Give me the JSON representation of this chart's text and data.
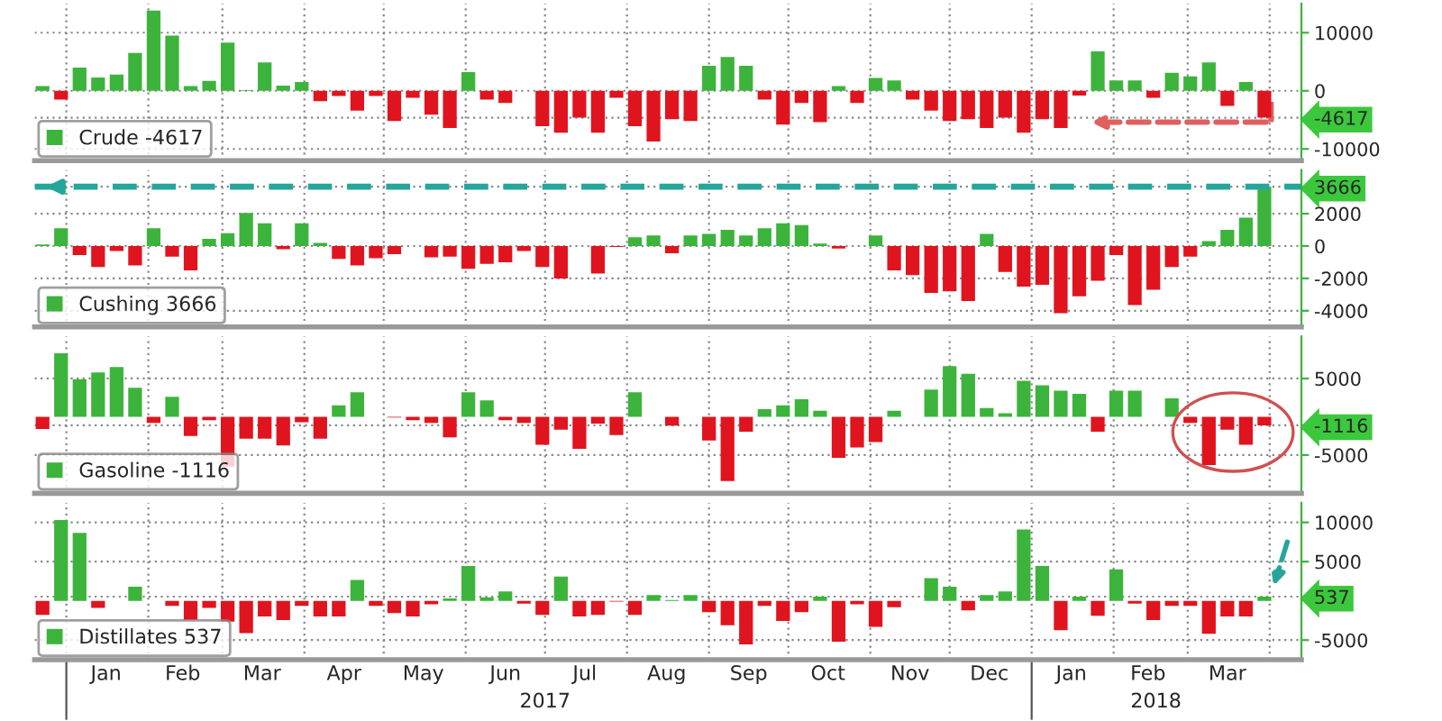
{
  "chart_data": [
    {
      "type": "bar",
      "tick_labels": "y",
      "grid": true,
      "legend": "bottom left",
      "x": [
        "2016-12-23",
        "2016-12-30",
        "2017-01-06",
        "2017-01-13",
        "2017-01-20",
        "2017-01-27",
        "2017-02-03",
        "2017-02-10",
        "2017-02-17",
        "2017-02-24",
        "2017-03-03",
        "2017-03-10",
        "2017-03-17",
        "2017-03-24",
        "2017-03-31",
        "2017-04-07",
        "2017-04-14",
        "2017-04-21",
        "2017-04-28",
        "2017-05-05",
        "2017-05-12",
        "2017-05-19",
        "2017-05-26",
        "2017-06-02",
        "2017-06-09",
        "2017-06-16",
        "2017-06-23",
        "2017-06-30",
        "2017-07-07",
        "2017-07-14",
        "2017-07-21",
        "2017-07-28",
        "2017-08-04",
        "2017-08-11",
        "2017-08-18",
        "2017-08-25",
        "2017-09-01",
        "2017-09-08",
        "2017-09-15",
        "2017-09-22",
        "2017-09-29",
        "2017-10-06",
        "2017-10-13",
        "2017-10-20",
        "2017-10-27",
        "2017-11-03",
        "2017-11-10",
        "2017-11-17",
        "2017-11-24",
        "2017-12-01",
        "2017-12-08",
        "2017-12-15",
        "2017-12-22",
        "2017-12-29",
        "2018-01-05",
        "2018-01-12",
        "2018-01-19",
        "2018-01-26",
        "2018-02-02",
        "2018-02-09",
        "2018-02-16",
        "2018-02-23",
        "2018-03-02",
        "2018-03-09",
        "2018-03-16",
        "2018-03-23",
        "2018-03-30"
      ],
      "series": [
        {
          "name": "Crude -4617",
          "color": "#3cb43c",
          "values": [
            800,
            -1500,
            4000,
            2300,
            2800,
            6500,
            13800,
            9500,
            800,
            1700,
            8300,
            100,
            4900,
            900,
            1500,
            -1800,
            -900,
            -3400,
            -900,
            -5200,
            -1200,
            -4100,
            -6400,
            3200,
            -1500,
            -2100,
            0,
            -6100,
            -7200,
            -4600,
            -7200,
            -1200,
            -6100,
            -8700,
            -4900,
            -5200,
            4300,
            5800,
            4300,
            -1500,
            -5800,
            -2100,
            -5400,
            800,
            -2100,
            2200,
            1800,
            -1500,
            -3400,
            -5200,
            -4900,
            -6400,
            -4600,
            -7200,
            -4900,
            -6400,
            -800,
            6800,
            1800,
            1800,
            -1200,
            3100,
            2500,
            4900,
            -2600,
            1500,
            -4617
          ],
          "colors": [
            "#3cb43c",
            "#e0141e",
            "#3cb43c",
            "#3cb43c",
            "#3cb43c",
            "#3cb43c",
            "#3cb43c",
            "#3cb43c",
            "#3cb43c",
            "#3cb43c",
            "#3cb43c",
            "#3cb43c",
            "#3cb43c",
            "#3cb43c",
            "#3cb43c",
            "#e0141e",
            "#e0141e",
            "#e0141e",
            "#e0141e",
            "#e0141e",
            "#e0141e",
            "#e0141e",
            "#e0141e",
            "#3cb43c",
            "#e0141e",
            "#e0141e",
            "#3cb43c",
            "#e0141e",
            "#e0141e",
            "#e0141e",
            "#e0141e",
            "#e0141e",
            "#e0141e",
            "#e0141e",
            "#e0141e",
            "#e0141e",
            "#3cb43c",
            "#3cb43c",
            "#3cb43c",
            "#e0141e",
            "#e0141e",
            "#e0141e",
            "#e0141e",
            "#3cb43c",
            "#e0141e",
            "#3cb43c",
            "#3cb43c",
            "#e0141e",
            "#e0141e",
            "#e0141e",
            "#e0141e",
            "#e0141e",
            "#e0141e",
            "#e0141e",
            "#e0141e",
            "#e0141e",
            "#e0141e",
            "#3cb43c",
            "#3cb43c",
            "#3cb43c",
            "#e0141e",
            "#3cb43c",
            "#3cb43c",
            "#3cb43c",
            "#e0141e",
            "#3cb43c",
            "#e0141e"
          ]
        }
      ],
      "xlim": [
        "2016-12-20",
        "2018-04-13"
      ],
      "xticks": [
        {
          "value": "2017-01-01",
          "label": null
        },
        {
          "value": "2017-02-01",
          "label": null
        },
        {
          "value": "2017-03-01",
          "label": null
        },
        {
          "value": "2017-04-01",
          "label": null
        },
        {
          "value": "2017-05-01",
          "label": null
        },
        {
          "value": "2017-06-01",
          "label": null
        },
        {
          "value": "2017-07-01",
          "label": null
        },
        {
          "value": "2017-08-01",
          "label": null
        },
        {
          "value": "2017-09-01",
          "label": null
        },
        {
          "value": "2017-10-01",
          "label": null
        },
        {
          "value": "2017-11-01",
          "label": null
        },
        {
          "value": "2017-12-01",
          "label": null
        },
        {
          "value": "2018-01-01",
          "label": null
        },
        {
          "value": "2018-02-01",
          "label": null
        },
        {
          "value": "2018-03-01",
          "label": null
        },
        {
          "value": "2018-04-01",
          "label": null
        }
      ],
      "ylim": [
        -12000,
        15000
      ],
      "yticks": [
        10000,
        0,
        {
          "value": -4617,
          "label": "-4617"
        },
        -10000
      ]
    },
    {
      "type": "bar",
      "tick_labels": "y",
      "grid": true,
      "legend": "bottom left",
      "x": [
        "2016-12-23",
        "2016-12-30",
        "2017-01-06",
        "2017-01-13",
        "2017-01-20",
        "2017-01-27",
        "2017-02-03",
        "2017-02-10",
        "2017-02-17",
        "2017-02-24",
        "2017-03-03",
        "2017-03-10",
        "2017-03-17",
        "2017-03-24",
        "2017-03-31",
        "2017-04-07",
        "2017-04-14",
        "2017-04-21",
        "2017-04-28",
        "2017-05-05",
        "2017-05-12",
        "2017-05-19",
        "2017-05-26",
        "2017-06-02",
        "2017-06-09",
        "2017-06-16",
        "2017-06-23",
        "2017-06-30",
        "2017-07-07",
        "2017-07-14",
        "2017-07-21",
        "2017-07-28",
        "2017-08-04",
        "2017-08-11",
        "2017-08-18",
        "2017-08-25",
        "2017-09-01",
        "2017-09-08",
        "2017-09-15",
        "2017-09-22",
        "2017-09-29",
        "2017-10-06",
        "2017-10-13",
        "2017-10-20",
        "2017-10-27",
        "2017-11-03",
        "2017-11-10",
        "2017-11-17",
        "2017-11-24",
        "2017-12-01",
        "2017-12-08",
        "2017-12-15",
        "2017-12-22",
        "2017-12-29",
        "2018-01-05",
        "2018-01-12",
        "2018-01-19",
        "2018-01-26",
        "2018-02-02",
        "2018-02-09",
        "2018-02-16",
        "2018-02-23",
        "2018-03-02",
        "2018-03-09",
        "2018-03-16",
        "2018-03-23",
        "2018-03-30"
      ],
      "series": [
        {
          "name": "Cushing 3666",
          "color": "#3cb43c",
          "values": [
            100,
            1100,
            -550,
            -1300,
            -300,
            -1200,
            1100,
            -650,
            -1500,
            450,
            800,
            2050,
            1400,
            -200,
            1400,
            200,
            -800,
            -1200,
            -750,
            -500,
            0,
            -700,
            -650,
            -1400,
            -1100,
            -1000,
            -300,
            -1300,
            -2000,
            0,
            -1700,
            -50,
            550,
            650,
            -450,
            650,
            750,
            1000,
            650,
            1100,
            1400,
            1300,
            150,
            -150,
            0,
            650,
            -1500,
            -1800,
            -2900,
            -2800,
            -3400,
            750,
            -1600,
            -2500,
            -2400,
            -4150,
            -3100,
            -2150,
            -550,
            -3650,
            -2700,
            -1300,
            -650,
            300,
            1000,
            1750,
            3666
          ],
          "colors": [
            "#3cb43c",
            "#3cb43c",
            "#e0141e",
            "#e0141e",
            "#e0141e",
            "#e0141e",
            "#3cb43c",
            "#e0141e",
            "#e0141e",
            "#3cb43c",
            "#3cb43c",
            "#3cb43c",
            "#3cb43c",
            "#e0141e",
            "#3cb43c",
            "#3cb43c",
            "#e0141e",
            "#e0141e",
            "#e0141e",
            "#e0141e",
            "#3cb43c",
            "#e0141e",
            "#e0141e",
            "#e0141e",
            "#e0141e",
            "#e0141e",
            "#e0141e",
            "#e0141e",
            "#e0141e",
            "#3cb43c",
            "#e0141e",
            "#e0141e",
            "#3cb43c",
            "#3cb43c",
            "#e0141e",
            "#3cb43c",
            "#3cb43c",
            "#3cb43c",
            "#3cb43c",
            "#3cb43c",
            "#3cb43c",
            "#3cb43c",
            "#3cb43c",
            "#e0141e",
            "#3cb43c",
            "#3cb43c",
            "#e0141e",
            "#e0141e",
            "#e0141e",
            "#e0141e",
            "#e0141e",
            "#3cb43c",
            "#e0141e",
            "#e0141e",
            "#e0141e",
            "#e0141e",
            "#e0141e",
            "#e0141e",
            "#e0141e",
            "#e0141e",
            "#e0141e",
            "#e0141e",
            "#e0141e",
            "#3cb43c",
            "#3cb43c",
            "#3cb43c",
            "#3cb43c"
          ]
        }
      ],
      "xlim": [
        "2016-12-20",
        "2018-04-13"
      ],
      "xticks": [
        {
          "value": "2017-01-01",
          "label": null
        },
        {
          "value": "2017-02-01",
          "label": null
        },
        {
          "value": "2017-03-01",
          "label": null
        },
        {
          "value": "2017-04-01",
          "label": null
        },
        {
          "value": "2017-05-01",
          "label": null
        },
        {
          "value": "2017-06-01",
          "label": null
        },
        {
          "value": "2017-07-01",
          "label": null
        },
        {
          "value": "2017-08-01",
          "label": null
        },
        {
          "value": "2017-09-01",
          "label": null
        },
        {
          "value": "2017-10-01",
          "label": null
        },
        {
          "value": "2017-11-01",
          "label": null
        },
        {
          "value": "2017-12-01",
          "label": null
        },
        {
          "value": "2018-01-01",
          "label": null
        },
        {
          "value": "2018-02-01",
          "label": null
        },
        {
          "value": "2018-03-01",
          "label": null
        },
        {
          "value": "2018-04-01",
          "label": null
        }
      ],
      "ylim": [
        -5000,
        4700
      ],
      "yticks": [
        {
          "value": 3666,
          "label": "3666"
        },
        2000,
        0,
        -2000,
        -4000
      ],
      "ref_lines": [
        {
          "axis": "y",
          "value": 3666,
          "color": "#26a69a",
          "line_style": "dashed"
        }
      ]
    },
    {
      "type": "bar",
      "tick_labels": "y",
      "grid": true,
      "legend": "bottom left",
      "x": [
        "2016-12-23",
        "2016-12-30",
        "2017-01-06",
        "2017-01-13",
        "2017-01-20",
        "2017-01-27",
        "2017-02-03",
        "2017-02-10",
        "2017-02-17",
        "2017-02-24",
        "2017-03-03",
        "2017-03-10",
        "2017-03-17",
        "2017-03-24",
        "2017-03-31",
        "2017-04-07",
        "2017-04-14",
        "2017-04-21",
        "2017-04-28",
        "2017-05-05",
        "2017-05-12",
        "2017-05-19",
        "2017-05-26",
        "2017-06-02",
        "2017-06-09",
        "2017-06-16",
        "2017-06-23",
        "2017-06-30",
        "2017-07-07",
        "2017-07-14",
        "2017-07-21",
        "2017-07-28",
        "2017-08-04",
        "2017-08-11",
        "2017-08-18",
        "2017-08-25",
        "2017-09-01",
        "2017-09-08",
        "2017-09-15",
        "2017-09-22",
        "2017-09-29",
        "2017-10-06",
        "2017-10-13",
        "2017-10-20",
        "2017-10-27",
        "2017-11-03",
        "2017-11-10",
        "2017-11-17",
        "2017-11-24",
        "2017-12-01",
        "2017-12-08",
        "2017-12-15",
        "2017-12-22",
        "2017-12-29",
        "2018-01-05",
        "2018-01-12",
        "2018-01-19",
        "2018-01-26",
        "2018-02-02",
        "2018-02-09",
        "2018-02-16",
        "2018-02-23",
        "2018-03-02",
        "2018-03-09",
        "2018-03-16",
        "2018-03-23",
        "2018-03-30"
      ],
      "series": [
        {
          "name": "Gasoline -1116",
          "color": "#3cb43c",
          "values": [
            -1600,
            8300,
            4900,
            5800,
            6500,
            3800,
            -800,
            2600,
            -2500,
            -450,
            -6500,
            -2850,
            -2850,
            -3750,
            -700,
            -2850,
            1500,
            3200,
            0,
            -100,
            -450,
            -800,
            -2700,
            3200,
            2150,
            -450,
            -800,
            -3650,
            -1700,
            -4200,
            -900,
            -2400,
            3200,
            0,
            -1150,
            0,
            -3100,
            -8400,
            -1950,
            1000,
            1500,
            2300,
            800,
            -5350,
            -4000,
            -3300,
            800,
            0,
            3550,
            6600,
            5600,
            1150,
            450,
            4700,
            4100,
            3400,
            3000,
            -1950,
            3400,
            3400,
            0,
            2400,
            -800,
            -6300,
            -1700,
            -3650,
            -1116
          ],
          "colors": [
            "#e0141e",
            "#3cb43c",
            "#3cb43c",
            "#3cb43c",
            "#3cb43c",
            "#3cb43c",
            "#e0141e",
            "#3cb43c",
            "#e0141e",
            "#e0141e",
            "#e0141e",
            "#e0141e",
            "#e0141e",
            "#e0141e",
            "#e0141e",
            "#e0141e",
            "#3cb43c",
            "#3cb43c",
            "#3cb43c",
            "#e0141e",
            "#e0141e",
            "#e0141e",
            "#e0141e",
            "#3cb43c",
            "#3cb43c",
            "#e0141e",
            "#e0141e",
            "#e0141e",
            "#e0141e",
            "#e0141e",
            "#e0141e",
            "#e0141e",
            "#3cb43c",
            "#3cb43c",
            "#e0141e",
            "#3cb43c",
            "#e0141e",
            "#e0141e",
            "#e0141e",
            "#3cb43c",
            "#3cb43c",
            "#3cb43c",
            "#3cb43c",
            "#e0141e",
            "#e0141e",
            "#e0141e",
            "#3cb43c",
            "#3cb43c",
            "#3cb43c",
            "#3cb43c",
            "#3cb43c",
            "#3cb43c",
            "#3cb43c",
            "#3cb43c",
            "#3cb43c",
            "#3cb43c",
            "#3cb43c",
            "#e0141e",
            "#3cb43c",
            "#3cb43c",
            "#3cb43c",
            "#3cb43c",
            "#e0141e",
            "#e0141e",
            "#e0141e",
            "#e0141e",
            "#e0141e"
          ]
        }
      ],
      "xlim": [
        "2016-12-20",
        "2018-04-13"
      ],
      "xticks": [
        {
          "value": "2017-01-01",
          "label": null
        },
        {
          "value": "2017-02-01",
          "label": null
        },
        {
          "value": "2017-03-01",
          "label": null
        },
        {
          "value": "2017-04-01",
          "label": null
        },
        {
          "value": "2017-05-01",
          "label": null
        },
        {
          "value": "2017-06-01",
          "label": null
        },
        {
          "value": "2017-07-01",
          "label": null
        },
        {
          "value": "2017-08-01",
          "label": null
        },
        {
          "value": "2017-09-01",
          "label": null
        },
        {
          "value": "2017-10-01",
          "label": null
        },
        {
          "value": "2017-11-01",
          "label": null
        },
        {
          "value": "2017-12-01",
          "label": null
        },
        {
          "value": "2018-01-01",
          "label": null
        },
        {
          "value": "2018-02-01",
          "label": null
        },
        {
          "value": "2018-03-01",
          "label": null
        },
        {
          "value": "2018-04-01",
          "label": null
        }
      ],
      "ylim": [
        -10000,
        10500
      ],
      "yticks": [
        5000,
        {
          "value": -1116,
          "label": "-1116"
        },
        -5000
      ]
    },
    {
      "type": "bar",
      "grid": true,
      "legend": "bottom left",
      "x": [
        "2016-12-23",
        "2016-12-30",
        "2017-01-06",
        "2017-01-13",
        "2017-01-20",
        "2017-01-27",
        "2017-02-03",
        "2017-02-10",
        "2017-02-17",
        "2017-02-24",
        "2017-03-03",
        "2017-03-10",
        "2017-03-17",
        "2017-03-24",
        "2017-03-31",
        "2017-04-07",
        "2017-04-14",
        "2017-04-21",
        "2017-04-28",
        "2017-05-05",
        "2017-05-12",
        "2017-05-19",
        "2017-05-26",
        "2017-06-02",
        "2017-06-09",
        "2017-06-16",
        "2017-06-23",
        "2017-06-30",
        "2017-07-07",
        "2017-07-14",
        "2017-07-21",
        "2017-07-28",
        "2017-08-04",
        "2017-08-11",
        "2017-08-18",
        "2017-08-25",
        "2017-09-01",
        "2017-09-08",
        "2017-09-15",
        "2017-09-22",
        "2017-09-29",
        "2017-10-06",
        "2017-10-13",
        "2017-10-20",
        "2017-10-27",
        "2017-11-03",
        "2017-11-10",
        "2017-11-17",
        "2017-11-24",
        "2017-12-01",
        "2017-12-08",
        "2017-12-15",
        "2017-12-22",
        "2017-12-29",
        "2018-01-05",
        "2018-01-12",
        "2018-01-19",
        "2018-01-26",
        "2018-02-02",
        "2018-02-09",
        "2018-02-16",
        "2018-02-23",
        "2018-03-02",
        "2018-03-09",
        "2018-03-16",
        "2018-03-23",
        "2018-03-30"
      ],
      "series": [
        {
          "name": "Distillates 537",
          "color": "#3cb43c",
          "values": [
            -1800,
            10300,
            8650,
            -900,
            0,
            1800,
            0,
            -650,
            -2450,
            -900,
            -2650,
            -4100,
            -2000,
            -2450,
            -650,
            -2000,
            -2000,
            2650,
            -650,
            -1550,
            -2000,
            -450,
            300,
            4450,
            450,
            1200,
            -350,
            -1800,
            3100,
            -2000,
            -1800,
            -100,
            -1800,
            750,
            100,
            750,
            -1450,
            -3100,
            -5550,
            -650,
            -2550,
            -1450,
            550,
            -5200,
            -450,
            -3300,
            -800,
            0,
            2900,
            1800,
            -1200,
            750,
            1200,
            9100,
            4450,
            -3750,
            550,
            -1900,
            4000,
            -350,
            -2450,
            -650,
            -650,
            -4200,
            -2000,
            -2000,
            537
          ],
          "colors": [
            "#e0141e",
            "#3cb43c",
            "#3cb43c",
            "#e0141e",
            "#3cb43c",
            "#3cb43c",
            "#3cb43c",
            "#e0141e",
            "#e0141e",
            "#e0141e",
            "#e0141e",
            "#e0141e",
            "#e0141e",
            "#e0141e",
            "#e0141e",
            "#e0141e",
            "#e0141e",
            "#3cb43c",
            "#e0141e",
            "#e0141e",
            "#e0141e",
            "#e0141e",
            "#3cb43c",
            "#3cb43c",
            "#3cb43c",
            "#3cb43c",
            "#e0141e",
            "#e0141e",
            "#3cb43c",
            "#e0141e",
            "#e0141e",
            "#e0141e",
            "#e0141e",
            "#3cb43c",
            "#3cb43c",
            "#3cb43c",
            "#e0141e",
            "#e0141e",
            "#e0141e",
            "#e0141e",
            "#e0141e",
            "#e0141e",
            "#3cb43c",
            "#e0141e",
            "#e0141e",
            "#e0141e",
            "#e0141e",
            "#3cb43c",
            "#3cb43c",
            "#3cb43c",
            "#e0141e",
            "#3cb43c",
            "#3cb43c",
            "#3cb43c",
            "#3cb43c",
            "#e0141e",
            "#3cb43c",
            "#e0141e",
            "#3cb43c",
            "#e0141e",
            "#e0141e",
            "#e0141e",
            "#e0141e",
            "#e0141e",
            "#e0141e",
            "#e0141e",
            "#3cb43c"
          ]
        }
      ],
      "xlim": [
        "2016-12-20",
        "2018-04-13"
      ],
      "xticks": [
        {
          "value": "2017-01-01",
          "label": null
        },
        {
          "value": "2017-01-16",
          "label": "Jan"
        },
        {
          "value": "2017-02-01",
          "label": null
        },
        {
          "value": "2017-02-14",
          "label": "Feb"
        },
        {
          "value": "2017-03-01",
          "label": null
        },
        {
          "value": "2017-03-16",
          "label": "Mar"
        },
        {
          "value": "2017-04-01",
          "label": null
        },
        {
          "value": "2017-04-16",
          "label": "Apr"
        },
        {
          "value": "2017-05-01",
          "label": null
        },
        {
          "value": "2017-05-16",
          "label": "May"
        },
        {
          "value": "2017-06-01",
          "label": null
        },
        {
          "value": "2017-06-16",
          "label": "Jun"
        },
        {
          "value": "2017-07-01",
          "label": null
        },
        {
          "value": "2017-07-16",
          "label": "Jul"
        },
        {
          "value": "2017-08-01",
          "label": null
        },
        {
          "value": "2017-08-16",
          "label": "Aug"
        },
        {
          "value": "2017-09-01",
          "label": null
        },
        {
          "value": "2017-09-16",
          "label": "Sep"
        },
        {
          "value": "2017-10-01",
          "label": null
        },
        {
          "value": "2017-10-16",
          "label": "Oct"
        },
        {
          "value": "2017-11-01",
          "label": null
        },
        {
          "value": "2017-11-16",
          "label": "Nov"
        },
        {
          "value": "2017-12-01",
          "label": null
        },
        {
          "value": "2017-12-16",
          "label": "Dec"
        },
        {
          "value": "2018-01-01",
          "label": null
        },
        {
          "value": "2018-01-16",
          "label": "Jan"
        },
        {
          "value": "2018-02-01",
          "label": null
        },
        {
          "value": "2018-02-14",
          "label": "Feb"
        },
        {
          "value": "2018-03-01",
          "label": null
        },
        {
          "value": "2018-03-16",
          "label": "Mar"
        },
        {
          "value": "2018-04-01",
          "label": null
        }
      ],
      "x2lim": [
        "2016-12-20",
        "2018-04-13"
      ],
      "x2ticks": [
        {
          "value": "2017-01-01",
          "label": null
        },
        {
          "value": "2017-07-01",
          "label": "2017"
        },
        {
          "value": "2018-01-01",
          "label": null
        },
        {
          "value": "2018-02-17",
          "label": "2018"
        }
      ],
      "ylim": [
        -7500,
        12500
      ],
      "yticks": [
        10000,
        5000,
        {
          "value": 537,
          "label": "537"
        },
        -5000
      ]
    }
  ]
}
